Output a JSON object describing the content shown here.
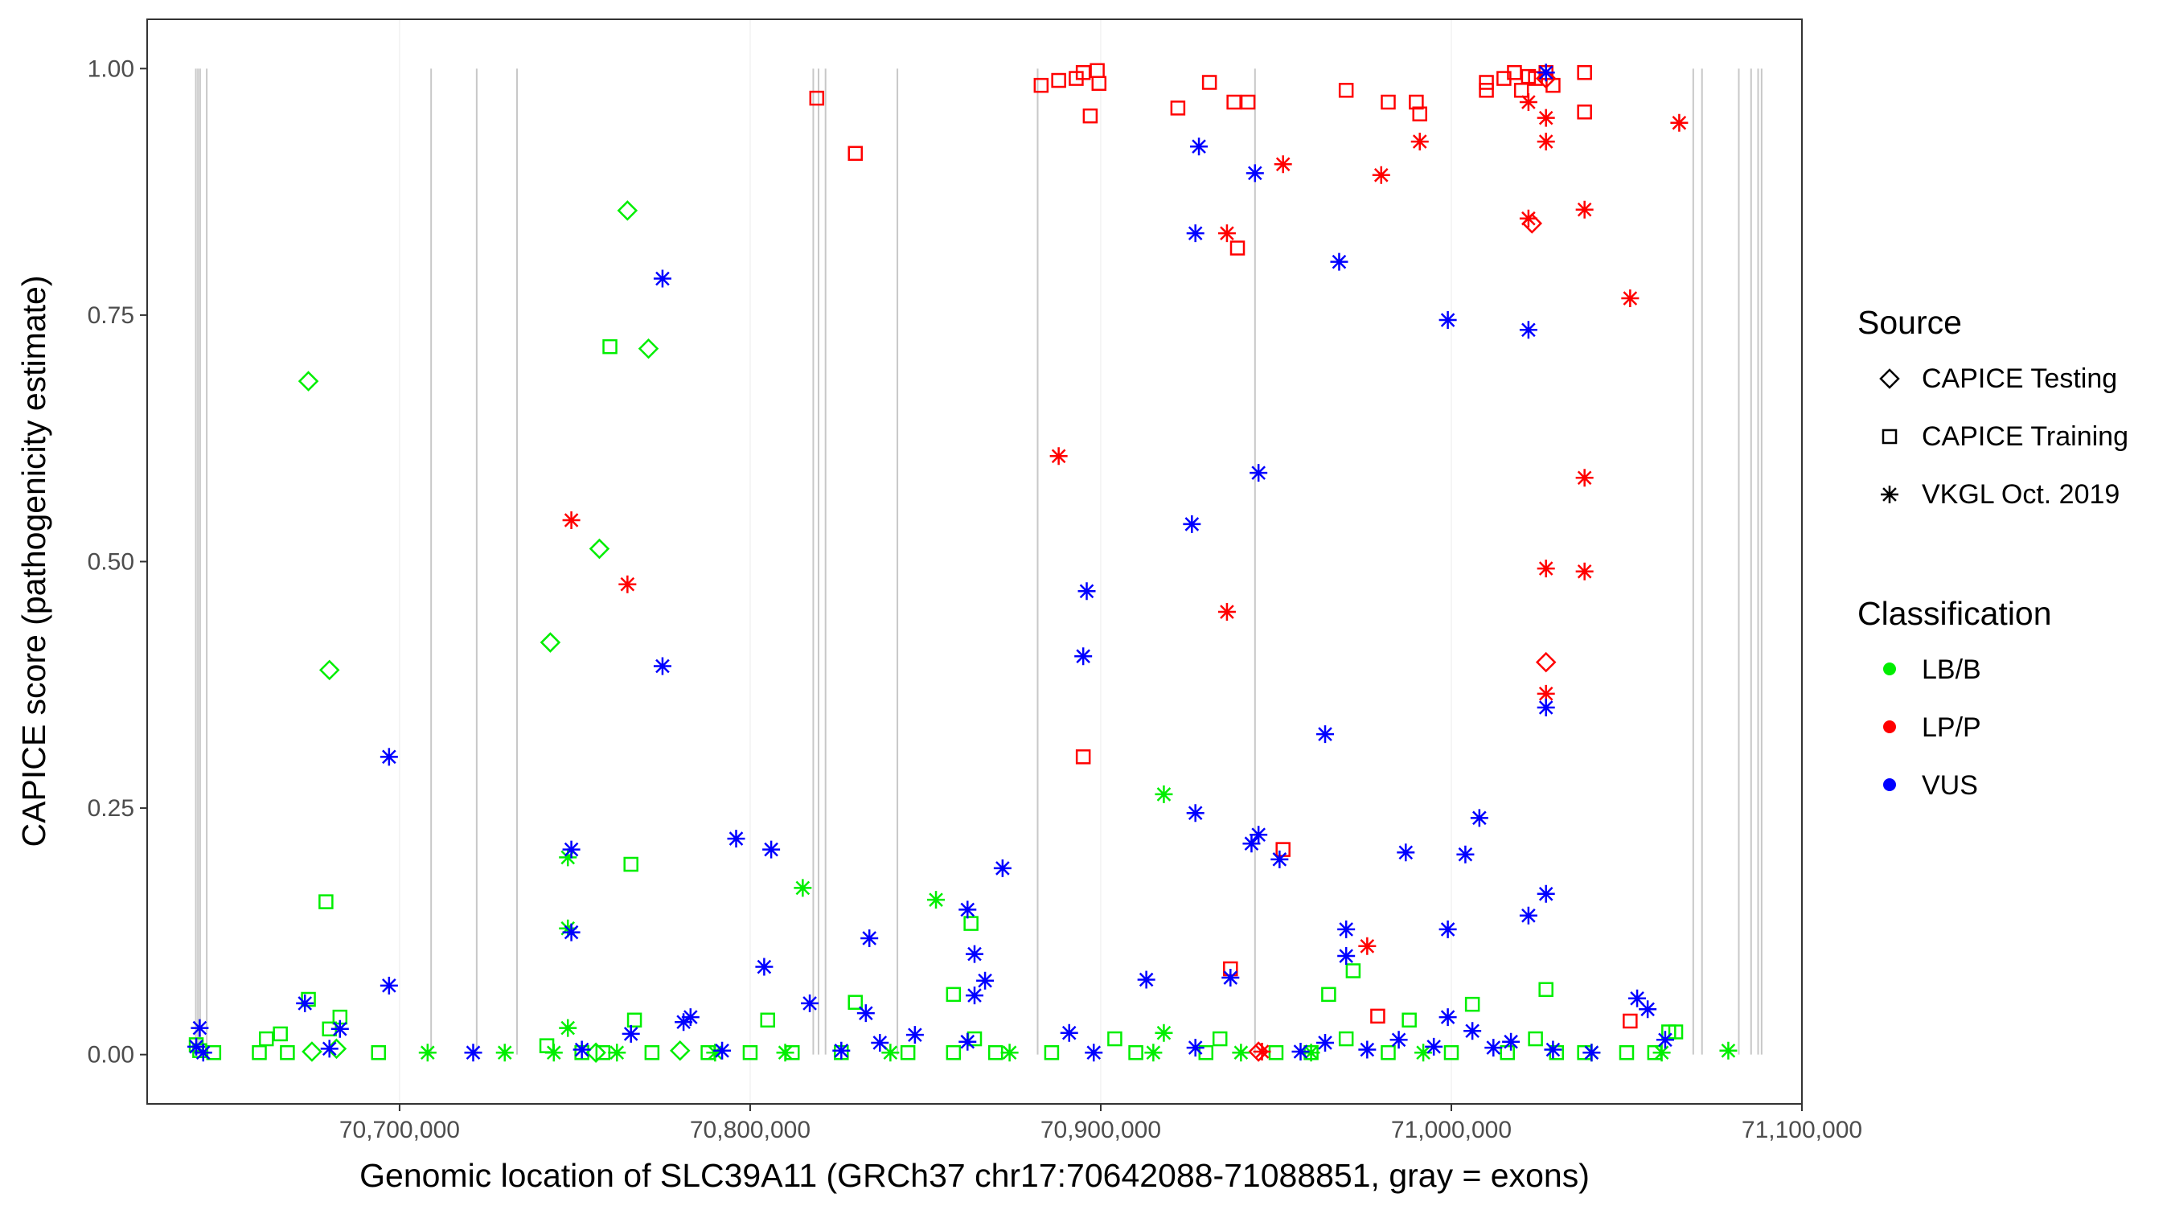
{
  "chart_data": {
    "type": "scatter",
    "title": "",
    "xlabel": "Genomic location of SLC39A11 (GRCh37 chr17:70642088-71088851, gray = exons)",
    "ylabel": "CAPICE score (pathogenicity estimate)",
    "xlim": [
      70628000,
      71100000
    ],
    "ylim": [
      -0.05,
      1.05
    ],
    "x_ticks": [
      70700000,
      70800000,
      70900000,
      71000000,
      71100000
    ],
    "x_tick_labels": [
      "70,700,000",
      "70,800,000",
      "70,900,000",
      "71,000,000",
      "71,100,000"
    ],
    "y_ticks": [
      0,
      0.25,
      0.5,
      0.75,
      1
    ],
    "y_tick_labels": [
      "0.00",
      "0.25",
      "0.50",
      "0.75",
      "1.00"
    ],
    "exons": [
      70641900,
      70642500,
      70643100,
      70645000,
      70709000,
      70722000,
      70733500,
      70818000,
      70819500,
      70821500,
      70842000,
      70882000,
      70944000,
      71069000,
      71071500,
      71082000,
      71085500,
      71087500,
      71088500
    ],
    "legend": {
      "source_title": "Source",
      "source_items": [
        {
          "shape": "diamond",
          "label": "CAPICE Testing"
        },
        {
          "shape": "square",
          "label": "CAPICE Training"
        },
        {
          "shape": "asterisk",
          "label": "VKGL Oct. 2019"
        }
      ],
      "class_title": "Classification",
      "class_items": [
        {
          "key": "LB/B",
          "label": "LB/B",
          "color": "#00ee00"
        },
        {
          "key": "LP/P",
          "label": "LP/P",
          "color": "#ff0000"
        },
        {
          "key": "VUS",
          "label": "VUS",
          "color": "#0000ff"
        }
      ]
    },
    "colors": {
      "LB/B": "#00ee00",
      "LP/P": "#ff0000",
      "VUS": "#0000ff",
      "exon": "#c8c8c8",
      "grid": "#ebebeb"
    },
    "series": [
      {
        "name": "CAPICE Testing",
        "shape": "diamond",
        "classification": "LB/B",
        "points": [
          [
            70674000,
            0.683
          ],
          [
            70680000,
            0.39
          ],
          [
            70743000,
            0.418
          ],
          [
            70757000,
            0.513
          ],
          [
            70765000,
            0.856
          ],
          [
            70771000,
            0.716
          ],
          [
            70675000,
            0.003
          ],
          [
            70682000,
            0.006
          ],
          [
            70756000,
            0.002
          ],
          [
            70780000,
            0.004
          ]
        ]
      },
      {
        "name": "CAPICE Testing",
        "shape": "diamond",
        "classification": "LP/P",
        "points": [
          [
            71027000,
            0.398
          ],
          [
            71023000,
            0.843
          ],
          [
            71027000,
            0.99
          ],
          [
            70945000,
            0.003
          ]
        ]
      },
      {
        "name": "CAPICE Training",
        "shape": "square",
        "classification": "LB/B",
        "points": [
          [
            70760000,
            0.718
          ],
          [
            70679000,
            0.155
          ],
          [
            70766000,
            0.193
          ],
          [
            70863000,
            0.133
          ],
          [
            71027000,
            0.066
          ],
          [
            70965000,
            0.061
          ],
          [
            70972000,
            0.085
          ],
          [
            70858000,
            0.061
          ],
          [
            70674000,
            0.056
          ],
          [
            70680000,
            0.026
          ],
          [
            70683000,
            0.038
          ],
          [
            70830000,
            0.053
          ],
          [
            70805000,
            0.035
          ],
          [
            70767000,
            0.035
          ],
          [
            70988000,
            0.035
          ],
          [
            71006000,
            0.051
          ],
          [
            70662000,
            0.016
          ],
          [
            70666000,
            0.021
          ],
          [
            70742000,
            0.009
          ],
          [
            70864000,
            0.016
          ],
          [
            70904000,
            0.016
          ],
          [
            70934000,
            0.016
          ],
          [
            70970000,
            0.016
          ],
          [
            71024000,
            0.016
          ],
          [
            71062000,
            0.023
          ],
          [
            71064000,
            0.023
          ],
          [
            70642000,
            0.01
          ],
          [
            70643000,
            0.004
          ],
          [
            70647000,
            0.002
          ],
          [
            70660000,
            0.002
          ],
          [
            70668000,
            0.002
          ],
          [
            70694000,
            0.002
          ],
          [
            70752000,
            0.002
          ],
          [
            70758000,
            0.002
          ],
          [
            70772000,
            0.002
          ],
          [
            70788000,
            0.002
          ],
          [
            70800000,
            0.002
          ],
          [
            70812000,
            0.002
          ],
          [
            70826000,
            0.002
          ],
          [
            70845000,
            0.002
          ],
          [
            70858000,
            0.002
          ],
          [
            70870000,
            0.002
          ],
          [
            70886000,
            0.002
          ],
          [
            70910000,
            0.002
          ],
          [
            70930000,
            0.002
          ],
          [
            70950000,
            0.002
          ],
          [
            70960000,
            0.002
          ],
          [
            70982000,
            0.002
          ],
          [
            71000000,
            0.002
          ],
          [
            71016000,
            0.002
          ],
          [
            71030000,
            0.002
          ],
          [
            71038000,
            0.002
          ],
          [
            71050000,
            0.002
          ],
          [
            71058000,
            0.002
          ]
        ]
      },
      {
        "name": "CAPICE Training",
        "shape": "square",
        "classification": "LP/P",
        "points": [
          [
            70819000,
            0.97
          ],
          [
            70830000,
            0.914
          ],
          [
            70883000,
            0.983
          ],
          [
            70888000,
            0.988
          ],
          [
            70893000,
            0.99
          ],
          [
            70895000,
            0.996
          ],
          [
            70897000,
            0.952
          ],
          [
            70899000,
            0.998
          ],
          [
            70899500,
            0.985
          ],
          [
            70922000,
            0.96
          ],
          [
            70931000,
            0.986
          ],
          [
            70938000,
            0.966
          ],
          [
            70942000,
            0.966
          ],
          [
            70970000,
            0.978
          ],
          [
            70982000,
            0.966
          ],
          [
            70990000,
            0.966
          ],
          [
            70991000,
            0.954
          ],
          [
            71010000,
            0.986
          ],
          [
            71010000,
            0.978
          ],
          [
            71015000,
            0.99
          ],
          [
            71018000,
            0.996
          ],
          [
            71020000,
            0.978
          ],
          [
            71022000,
            0.992
          ],
          [
            71024000,
            0.99
          ],
          [
            71027000,
            0.996
          ],
          [
            71029000,
            0.983
          ],
          [
            71038000,
            0.996
          ],
          [
            71038000,
            0.956
          ],
          [
            70939000,
            0.818
          ],
          [
            70895000,
            0.302
          ],
          [
            70952000,
            0.208
          ],
          [
            70937000,
            0.087
          ],
          [
            70979000,
            0.039
          ],
          [
            71051000,
            0.034
          ]
        ]
      },
      {
        "name": "VKGL Oct. 2019",
        "shape": "asterisk",
        "classification": "LB/B",
        "points": [
          [
            70748000,
            0.2
          ],
          [
            70748000,
            0.128
          ],
          [
            70815000,
            0.169
          ],
          [
            70853000,
            0.157
          ],
          [
            70918000,
            0.264
          ],
          [
            70748000,
            0.027
          ],
          [
            70918000,
            0.022
          ],
          [
            70708000,
            0.002
          ],
          [
            70730000,
            0.002
          ],
          [
            70744000,
            0.002
          ],
          [
            70762000,
            0.002
          ],
          [
            70790000,
            0.002
          ],
          [
            70810000,
            0.002
          ],
          [
            70840000,
            0.002
          ],
          [
            70874000,
            0.002
          ],
          [
            70915000,
            0.002
          ],
          [
            70940000,
            0.002
          ],
          [
            70960000,
            0.002
          ],
          [
            70992000,
            0.002
          ],
          [
            71040000,
            0.002
          ],
          [
            71060000,
            0.002
          ],
          [
            71079000,
            0.004
          ]
        ]
      },
      {
        "name": "VKGL Oct. 2019",
        "shape": "asterisk",
        "classification": "LP/P",
        "points": [
          [
            70749000,
            0.542
          ],
          [
            70765000,
            0.477
          ],
          [
            70888000,
            0.607
          ],
          [
            70936000,
            0.833
          ],
          [
            70936000,
            0.449
          ],
          [
            70952000,
            0.903
          ],
          [
            70980000,
            0.892
          ],
          [
            70991000,
            0.926
          ],
          [
            71022000,
            0.848
          ],
          [
            71027000,
            0.926
          ],
          [
            71027000,
            0.95
          ],
          [
            71022000,
            0.966
          ],
          [
            71027000,
            0.493
          ],
          [
            71027000,
            0.366
          ],
          [
            71038000,
            0.857
          ],
          [
            71038000,
            0.585
          ],
          [
            71038000,
            0.49
          ],
          [
            71051000,
            0.767
          ],
          [
            71065000,
            0.945
          ],
          [
            70976000,
            0.11
          ],
          [
            70946000,
            0.003
          ]
        ]
      },
      {
        "name": "VKGL Oct. 2019",
        "shape": "asterisk",
        "classification": "VUS",
        "points": [
          [
            70775000,
            0.787
          ],
          [
            70775000,
            0.394
          ],
          [
            70697000,
            0.302
          ],
          [
            70697000,
            0.07
          ],
          [
            70749000,
            0.208
          ],
          [
            70749000,
            0.124
          ],
          [
            70796000,
            0.219
          ],
          [
            70806000,
            0.208
          ],
          [
            70804000,
            0.089
          ],
          [
            70817000,
            0.052
          ],
          [
            70834000,
            0.118
          ],
          [
            70862000,
            0.147
          ],
          [
            70864000,
            0.102
          ],
          [
            70864000,
            0.06
          ],
          [
            70867000,
            0.075
          ],
          [
            70872000,
            0.189
          ],
          [
            70895000,
            0.404
          ],
          [
            70896000,
            0.47
          ],
          [
            70913000,
            0.076
          ],
          [
            70926000,
            0.538
          ],
          [
            70927000,
            0.833
          ],
          [
            70928000,
            0.921
          ],
          [
            70927000,
            0.245
          ],
          [
            70943000,
            0.214
          ],
          [
            70945000,
            0.223
          ],
          [
            70944000,
            0.894
          ],
          [
            70945000,
            0.59
          ],
          [
            70951000,
            0.198
          ],
          [
            70937000,
            0.078
          ],
          [
            70964000,
            0.325
          ],
          [
            70968000,
            0.804
          ],
          [
            70970000,
            0.127
          ],
          [
            70970000,
            0.1
          ],
          [
            70987000,
            0.205
          ],
          [
            70999000,
            0.745
          ],
          [
            70999000,
            0.127
          ],
          [
            71004000,
            0.203
          ],
          [
            71008000,
            0.24
          ],
          [
            71022000,
            0.735
          ],
          [
            71022000,
            0.141
          ],
          [
            71027000,
            0.163
          ],
          [
            71027000,
            0.352
          ],
          [
            71027000,
            0.996
          ],
          [
            71053000,
            0.057
          ],
          [
            71056000,
            0.046
          ],
          [
            71061000,
            0.015
          ],
          [
            70673000,
            0.052
          ],
          [
            70643000,
            0.027
          ],
          [
            70683000,
            0.026
          ],
          [
            70642000,
            0.008
          ],
          [
            70644000,
            0.002
          ],
          [
            70680000,
            0.006
          ],
          [
            70721000,
            0.002
          ],
          [
            70752000,
            0.005
          ],
          [
            70766000,
            0.021
          ],
          [
            70781000,
            0.033
          ],
          [
            70783000,
            0.038
          ],
          [
            70792000,
            0.004
          ],
          [
            70826000,
            0.004
          ],
          [
            70833000,
            0.042
          ],
          [
            70837000,
            0.012
          ],
          [
            70847000,
            0.02
          ],
          [
            70862000,
            0.013
          ],
          [
            70891000,
            0.022
          ],
          [
            70898000,
            0.002
          ],
          [
            70927000,
            0.007
          ],
          [
            70957000,
            0.003
          ],
          [
            70964000,
            0.012
          ],
          [
            70976000,
            0.005
          ],
          [
            70985000,
            0.015
          ],
          [
            70995000,
            0.008
          ],
          [
            70999000,
            0.038
          ],
          [
            71006000,
            0.024
          ],
          [
            71012000,
            0.007
          ],
          [
            71017000,
            0.013
          ],
          [
            71029000,
            0.005
          ],
          [
            71040000,
            0.002
          ]
        ]
      }
    ]
  }
}
